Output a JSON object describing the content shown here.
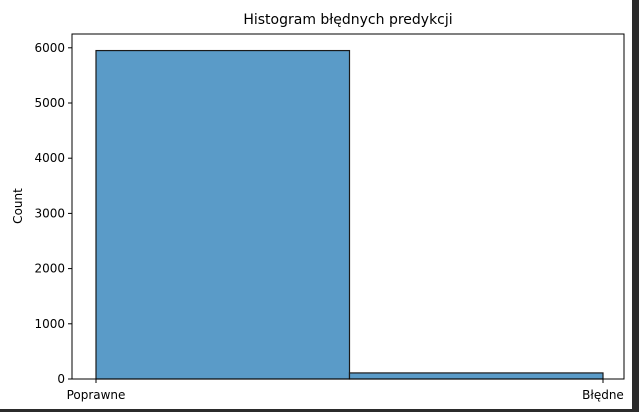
{
  "chart_data": {
    "type": "bar",
    "title": "Histogram błędnych predykcji",
    "xlabel": "",
    "ylabel": "Count",
    "categories": [
      "Poprawne",
      "Błędne"
    ],
    "values": [
      5950,
      110
    ],
    "ylim": [
      0,
      6250
    ],
    "yticks": [
      0,
      1000,
      2000,
      3000,
      4000,
      5000,
      6000
    ],
    "ytick_labels": [
      "0",
      "1000",
      "2000",
      "3000",
      "4000",
      "5000",
      "6000"
    ],
    "grid": false,
    "legend": "none",
    "bar_color": "#5a9bc8",
    "bar_edge_color": "#1a1a1a"
  }
}
